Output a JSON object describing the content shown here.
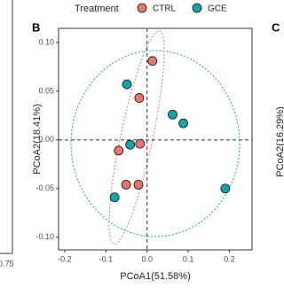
{
  "chart_data": {
    "type": "scatter",
    "panel_label": "B",
    "xlabel": "PCoA1(51.58%)",
    "ylabel": "PCoA2(18.41%)",
    "legend_title": "Treatment",
    "legend_position": "top",
    "xlim": [
      -0.215,
      0.255
    ],
    "ylim": [
      -0.113,
      0.1145
    ],
    "xticks": [
      -0.2,
      -0.1,
      {
        "value": 0,
        "label": "0.0"
      },
      0.1,
      0.2
    ],
    "yticks": [
      {
        "value": 0.1,
        "label": "0.10"
      },
      {
        "value": 0.05,
        "label": "0.05"
      },
      {
        "value": 0,
        "label": "0.00"
      },
      {
        "value": -0.05,
        "label": "-0.05"
      },
      {
        "value": -0.1,
        "label": "-0.10"
      }
    ],
    "series": [
      {
        "name": "CTRL",
        "color": "#e8766a",
        "x": [
          0.013,
          -0.019,
          -0.017,
          -0.069,
          -0.051,
          -0.021
        ],
        "values": [
          0.081,
          0.043,
          -0.004,
          -0.011,
          -0.046,
          -0.046
        ]
      },
      {
        "name": "GCE",
        "color": "#17a3ad",
        "x": [
          -0.049,
          0.062,
          0.088,
          -0.041,
          -0.079,
          0.19
        ],
        "values": [
          0.057,
          0.026,
          0.017,
          -0.005,
          -0.059,
          -0.05
        ]
      }
    ]
  },
  "neighbor_panels": {
    "left_tick": "0.75",
    "right_label": "C",
    "right_ylabel": "PCoA2(16.29%)"
  }
}
